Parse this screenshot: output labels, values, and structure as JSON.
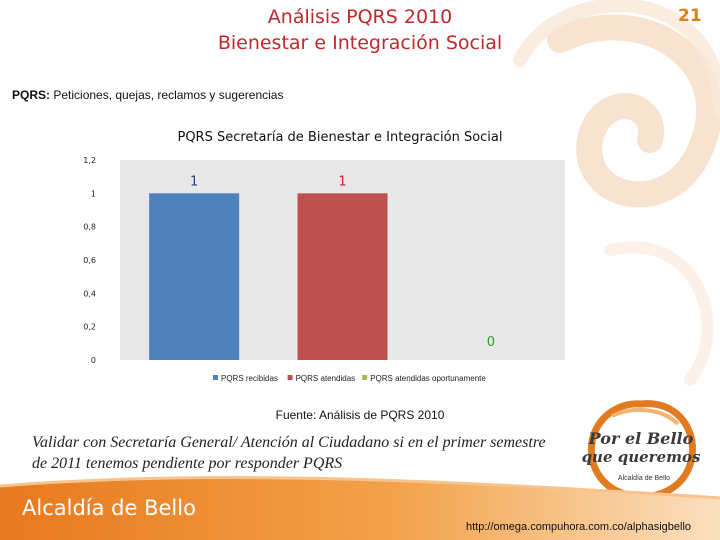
{
  "slide": {
    "title_line1": "Análisis PQRS 2010",
    "title_line2": "Bienestar e Integración Social",
    "page_number": "21",
    "definition_term": "PQRS:",
    "definition_text": " Peticiones, quejas, reclamos y sugerencias",
    "source_label": "Fuente",
    "source_text": ": Análisis de PQRS 2010",
    "note": "Validar con Secretaría General/ Atención al Ciudadano si en el primer semestre de 2011 tenemos pendiente por responder PQRS",
    "logo_line1": "Por el Bello",
    "logo_line2": "que queremos",
    "logo_line3": "Alcaldía de Bello",
    "footer_brand": "Alcaldía de Bello",
    "footer_url": "http://omega.compuhora.com.co/alphasigbello"
  },
  "chart_data": {
    "type": "bar",
    "title": "PQRS Secretaría de Bienestar e Integración Social",
    "categories": [
      "PQRS recibidas",
      "PQRS atendidas",
      "PQRS atendidas oportunamente"
    ],
    "values": [
      1,
      1,
      0
    ],
    "data_labels": [
      "1",
      "1",
      "0"
    ],
    "colors": [
      "#4f81bd",
      "#c0504d",
      "#9bbb59"
    ],
    "label_colors": [
      "#1f3f8f",
      "#c0282d",
      "#2e9a2e"
    ],
    "ylim": [
      0,
      1.2
    ],
    "yticks": [
      "0",
      "0,2",
      "0,4",
      "0,6",
      "0,8",
      "1",
      "1,2"
    ],
    "ytick_values": [
      0,
      0.2,
      0.4,
      0.6,
      0.8,
      1,
      1.2
    ],
    "legend_position": "bottom",
    "grid": false,
    "plot_background": "#e8e8e8"
  }
}
